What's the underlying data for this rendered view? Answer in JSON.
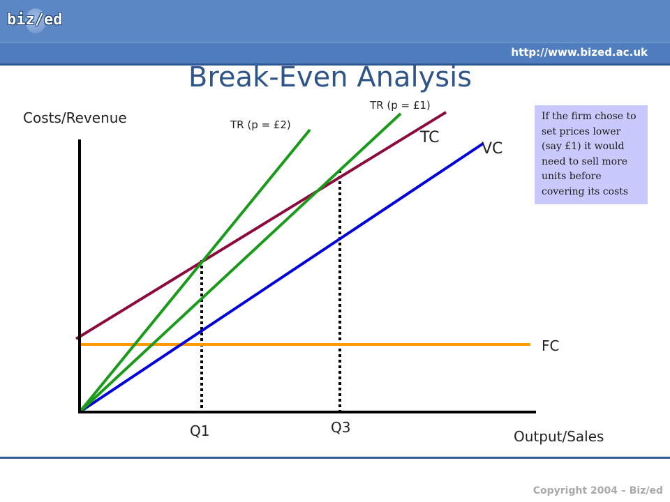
{
  "header": {
    "logo_text": "biz/ed",
    "url": "http://www.bized.ac.uk"
  },
  "footer": {
    "copyright": "Copyright 2004 – Biz/ed"
  },
  "note": {
    "text": "If the firm chose to set prices lower (say £1) it would need to sell more units before covering its costs"
  },
  "colors": {
    "fc": "#ff9900",
    "vc": "#0000dd",
    "tc": "#8c0a3c",
    "tr": "#1a9a1a",
    "axis": "#000000",
    "title": "#2f5487",
    "header": "#5b87c5"
  },
  "chart_data": {
    "type": "line",
    "title": "Break-Even Analysis",
    "xlabel": "Output/Sales",
    "ylabel": "Costs/Revenue",
    "xlim": [
      0,
      650
    ],
    "ylim": [
      0,
      390
    ],
    "series": [
      {
        "name": "FC",
        "x": [
          0,
          646
        ],
        "y": [
          97,
          97
        ]
      },
      {
        "name": "VC",
        "x": [
          0,
          578
        ],
        "y": [
          0,
          385
        ]
      },
      {
        "name": "TC",
        "x": [
          0,
          525
        ],
        "y": [
          105,
          430
        ]
      },
      {
        "name": "TR (p = £2)",
        "x": [
          0,
          330
        ],
        "y": [
          0,
          405
        ]
      },
      {
        "name": "TR (p = £1)",
        "x": [
          0,
          460
        ],
        "y": [
          0,
          428
        ]
      }
    ],
    "markers": [
      {
        "label": "Q1",
        "x": 175,
        "y": 218
      },
      {
        "label": "Q3",
        "x": 373,
        "y": 347
      }
    ]
  }
}
